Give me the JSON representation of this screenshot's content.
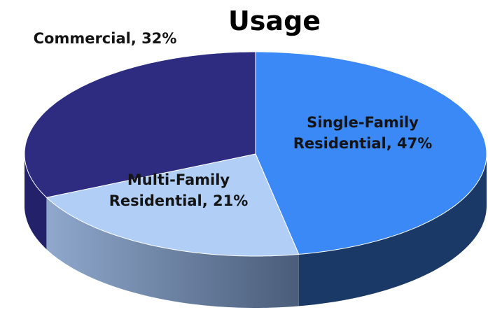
{
  "chart_data": {
    "type": "pie3d",
    "title": "Usage",
    "categories": [
      "Single-Family Residential",
      "Multi-Family Residential",
      "Commercial"
    ],
    "values": [
      47,
      21,
      32
    ],
    "value_labels": [
      "Single-Family Residential, 47%",
      "Multi-Family Residential, 21%",
      "Commercial, 32%"
    ],
    "colors": [
      "#3b88f7",
      "#b1cef6",
      "#2d2c80"
    ]
  }
}
